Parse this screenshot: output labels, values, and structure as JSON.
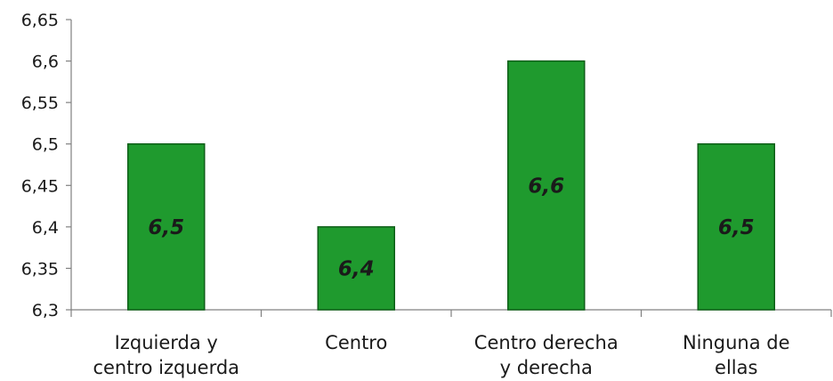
{
  "chart_data": {
    "type": "bar",
    "categories": [
      [
        "Izquierda y",
        "centro izquerda"
      ],
      [
        "Centro"
      ],
      [
        "Centro derecha",
        "y derecha"
      ],
      [
        "Ninguna de",
        "ellas"
      ]
    ],
    "values": [
      6.5,
      6.4,
      6.6,
      6.5
    ],
    "data_labels": [
      "6,5",
      "6,4",
      "6,6",
      "6,5"
    ],
    "yticks": [
      6.3,
      6.35,
      6.4,
      6.45,
      6.5,
      6.55,
      6.6,
      6.65
    ],
    "ytick_labels": [
      "6,3",
      "6,35",
      "6,4",
      "6,45",
      "6,5",
      "6,55",
      "6,6",
      "6,65"
    ],
    "ylim": [
      6.3,
      6.65
    ],
    "title": "",
    "xlabel": "",
    "ylabel": "",
    "grid": false,
    "bar_color": "#1f9a2e",
    "bar_edge_color": "#0d5e17",
    "axis_color": "#808080"
  }
}
